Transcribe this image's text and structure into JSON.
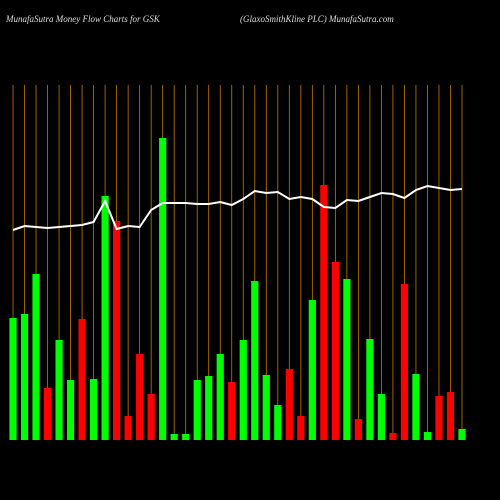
{
  "chart_data": {
    "type": "bar",
    "title": "MunafaSutra  Money  Flow  Charts for GSK",
    "subtitle": "(GlaxoSmithKline    PLC) MunafaSutra.com",
    "categories": [
      null,
      null,
      null,
      null,
      null,
      null,
      null,
      null,
      null,
      null,
      null,
      null,
      null,
      null,
      null,
      null,
      null,
      null,
      null,
      null,
      null,
      null,
      null,
      null,
      null,
      null,
      null,
      null,
      null,
      null,
      null,
      null,
      null,
      null,
      null,
      null,
      null,
      null,
      null,
      null
    ],
    "values": [
      122,
      126,
      166,
      52,
      100,
      60,
      121,
      61,
      244,
      219,
      24,
      86,
      46,
      302,
      6,
      6,
      60,
      64,
      86,
      58,
      100,
      159,
      65,
      35,
      71,
      24,
      140,
      255,
      178,
      161,
      21,
      101,
      46,
      7,
      156,
      66,
      8,
      44,
      48,
      11
    ],
    "colors": [
      "#00ff00",
      "#00ff00",
      "#00ff00",
      "#ff0000",
      "#00ff00",
      "#00ff00",
      "#ff0000",
      "#00ff00",
      "#00ff00",
      "#ff0000",
      "#ff0000",
      "#ff0000",
      "#ff0000",
      "#00ff00",
      "#00ff00",
      "#00ff00",
      "#00ff00",
      "#00ff00",
      "#00ff00",
      "#ff0000",
      "#00ff00",
      "#00ff00",
      "#00ff00",
      "#00ff00",
      "#ff0000",
      "#ff0000",
      "#00ff00",
      "#ff0000",
      "#ff0000",
      "#00ff00",
      "#ff0000",
      "#00ff00",
      "#00ff00",
      "#ff0000",
      "#ff0000",
      "#00ff00",
      "#00ff00",
      "#ff0000",
      "#ff0000",
      "#00ff00"
    ],
    "line_values": [
      210,
      214,
      213,
      212,
      213,
      214,
      215,
      218,
      239,
      211,
      214,
      213,
      230,
      237,
      237,
      237,
      236,
      236,
      238,
      235,
      241,
      249,
      247,
      248,
      241,
      243,
      241,
      233,
      232,
      240,
      239,
      243,
      247,
      246,
      242,
      250,
      254,
      252,
      250,
      251
    ],
    "line_color": "#ffffff",
    "grid_color": "#c87800",
    "ylim": [
      0,
      320
    ],
    "grid": true
  }
}
